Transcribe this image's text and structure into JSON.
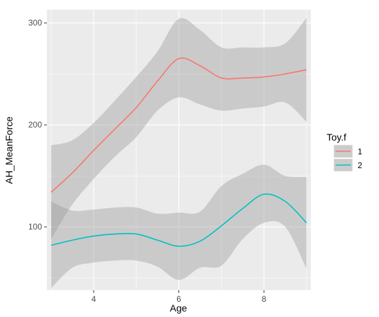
{
  "chart_data": {
    "type": "line",
    "xlabel": "Age",
    "ylabel": "AH_MeanForce",
    "xlim": [
      2.9,
      9.1
    ],
    "ylim": [
      38,
      313
    ],
    "x_ticks": [
      4,
      6,
      8
    ],
    "x_tick_labels": [
      "4",
      "6",
      "8"
    ],
    "y_ticks": [
      100,
      200,
      300
    ],
    "y_tick_labels": [
      "100",
      "200",
      "300"
    ],
    "grid": true,
    "legend": {
      "title": "Toy.f",
      "placement": "right",
      "entries": [
        "1",
        "2"
      ]
    },
    "series": [
      {
        "name": "1",
        "color": "#F8766D",
        "x": [
          3.0,
          3.5,
          4.0,
          4.5,
          5.0,
          5.5,
          6.0,
          6.5,
          7.0,
          7.5,
          8.0,
          8.5,
          9.0
        ],
        "y": [
          134,
          153,
          175,
          196,
          217,
          243,
          265,
          258,
          246,
          246,
          247,
          250,
          254
        ],
        "lower": [
          88,
          122,
          147,
          169,
          188,
          214,
          227,
          220,
          214,
          216,
          218,
          222,
          203
        ],
        "upper": [
          180,
          185,
          202,
          224,
          247,
          272,
          304,
          293,
          276,
          276,
          276,
          280,
          305
        ]
      },
      {
        "name": "2",
        "color": "#00BFC4",
        "x": [
          3.0,
          3.5,
          4.0,
          4.5,
          5.0,
          5.5,
          6.0,
          6.5,
          7.0,
          7.5,
          8.0,
          8.5,
          9.0
        ],
        "y": [
          82,
          87,
          91,
          93,
          93,
          87,
          81,
          86,
          101,
          118,
          132,
          125,
          104
        ],
        "lower": [
          40,
          60,
          65,
          67,
          67,
          61,
          48,
          60,
          62,
          88,
          104,
          100,
          59
        ],
        "upper": [
          125,
          116,
          117,
          119,
          119,
          113,
          114,
          115,
          140,
          152,
          161,
          150,
          149
        ]
      }
    ]
  }
}
